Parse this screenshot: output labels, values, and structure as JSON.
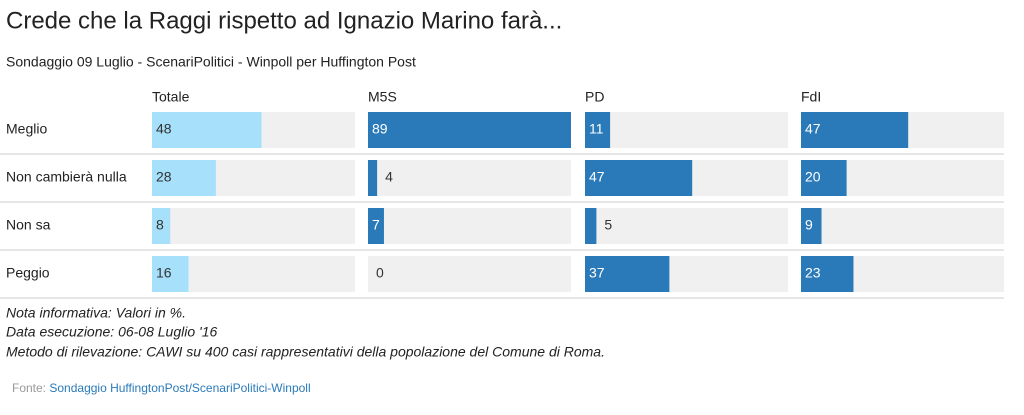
{
  "chart_data": {
    "type": "bar",
    "orientation": "horizontal",
    "title": "Crede che la Raggi rispetto ad Ignazio Marino farà...",
    "subtitle": "Sondaggio 09 Luglio - ScenariPolitici - Winpoll per Huffington Post",
    "categories": [
      "Meglio",
      "Non cambierà nulla",
      "Non sa",
      "Peggio"
    ],
    "series": [
      {
        "name": "Totale",
        "color": "#a6e0fb",
        "label_color": "#333333",
        "values": [
          48,
          28,
          8,
          16
        ]
      },
      {
        "name": "M5S",
        "color": "#2a7ab9",
        "label_color": "#ffffff",
        "values": [
          89,
          4,
          7,
          0
        ]
      },
      {
        "name": "PD",
        "color": "#2a7ab9",
        "label_color": "#ffffff",
        "values": [
          11,
          47,
          5,
          37
        ]
      },
      {
        "name": "FdI",
        "color": "#2a7ab9",
        "label_color": "#ffffff",
        "values": [
          47,
          20,
          9,
          23
        ]
      }
    ],
    "xlim": [
      0,
      89
    ],
    "notes": [
      "Nota informativa: Valori in %.",
      "Data esecuzione: 06-08 Luglio '16",
      "Metodo di rilevazione: CAWI su 400 casi rappresentativi della popolazione del Comune di Roma."
    ],
    "source_label": "Fonte:",
    "source_link": "Sondaggio HuffingtonPost/ScenariPolitici-Winpoll"
  }
}
